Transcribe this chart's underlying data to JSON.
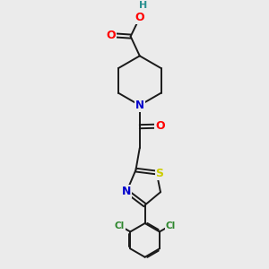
{
  "background_color": "#ebebeb",
  "bond_color": "#1a1a1a",
  "bond_width": 1.4,
  "atom_colors": {
    "O": "#ff0000",
    "N": "#0000cc",
    "S": "#cccc00",
    "Cl": "#2d862d",
    "H": "#2a9090",
    "C": "#1a1a1a"
  },
  "figsize": [
    3.0,
    3.0
  ],
  "dpi": 100
}
